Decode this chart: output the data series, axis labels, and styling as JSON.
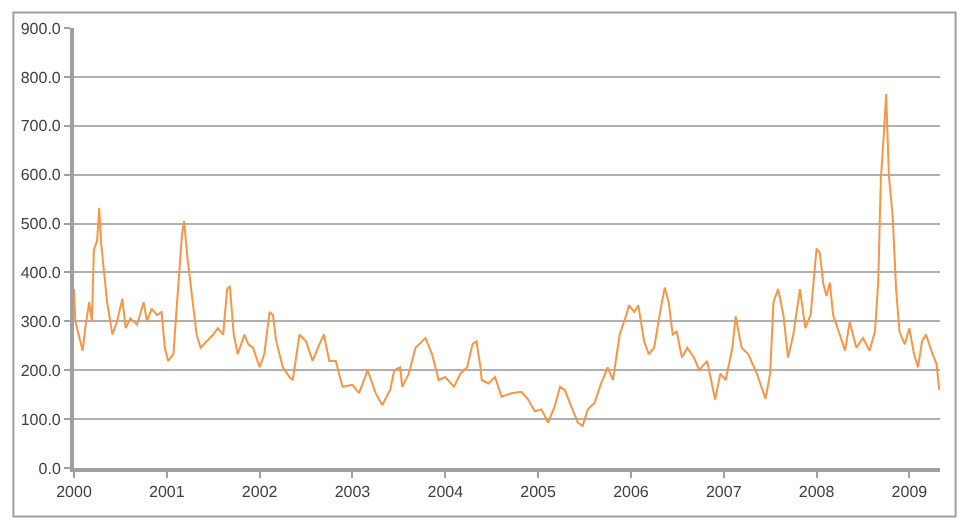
{
  "chart_data": {
    "type": "line",
    "x": [
      2000.0,
      2000.014,
      2000.05,
      2000.093,
      2000.121,
      2000.164,
      2000.193,
      2000.214,
      2000.25,
      2000.271,
      2000.293,
      2000.321,
      2000.357,
      2000.414,
      2000.464,
      2000.521,
      2000.557,
      2000.607,
      2000.679,
      2000.75,
      2000.786,
      2000.836,
      2000.893,
      2000.943,
      2000.979,
      2001.014,
      2001.071,
      2001.121,
      2001.164,
      2001.186,
      2001.221,
      2001.271,
      2001.321,
      2001.364,
      2001.429,
      2001.5,
      2001.55,
      2001.607,
      2001.65,
      2001.679,
      2001.721,
      2001.764,
      2001.836,
      2001.879,
      2001.929,
      2002.0,
      2002.05,
      2002.107,
      2002.143,
      2002.179,
      2002.25,
      2002.321,
      2002.357,
      2002.429,
      2002.5,
      2002.571,
      2002.643,
      2002.693,
      2002.75,
      2002.821,
      2002.893,
      2003.0,
      2003.071,
      2003.164,
      2003.25,
      2003.321,
      2003.407,
      2003.45,
      2003.514,
      2003.536,
      2003.607,
      2003.679,
      2003.75,
      2003.786,
      2003.857,
      2003.929,
      2004.0,
      2004.093,
      2004.164,
      2004.236,
      2004.293,
      2004.336,
      2004.379,
      2004.393,
      2004.464,
      2004.536,
      2004.607,
      2004.714,
      2004.821,
      2004.893,
      2004.964,
      2005.036,
      2005.107,
      2005.179,
      2005.236,
      2005.286,
      2005.357,
      2005.429,
      2005.479,
      2005.536,
      2005.607,
      2005.679,
      2005.75,
      2005.807,
      2005.879,
      2005.95,
      2005.979,
      2006.036,
      2006.079,
      2006.143,
      2006.193,
      2006.25,
      2006.321,
      2006.364,
      2006.407,
      2006.45,
      2006.493,
      2006.55,
      2006.607,
      2006.679,
      2006.736,
      2006.821,
      2006.907,
      2006.964,
      2007.021,
      2007.093,
      2007.129,
      2007.193,
      2007.264,
      2007.357,
      2007.45,
      2007.5,
      2007.536,
      2007.586,
      2007.643,
      2007.693,
      2007.75,
      2007.821,
      2007.879,
      2007.936,
      2008.0,
      2008.036,
      2008.071,
      2008.107,
      2008.143,
      2008.179,
      2008.25,
      2008.307,
      2008.357,
      2008.429,
      2008.5,
      2008.571,
      2008.629,
      2008.664,
      2008.693,
      2008.721,
      2008.75,
      2008.779,
      2008.821,
      2008.857,
      2008.893,
      2008.95,
      2009.0,
      2009.05,
      2009.093,
      2009.136,
      2009.179,
      2009.25,
      2009.293,
      2009.321
    ],
    "series": [
      {
        "color": "#f79646",
        "values": [
          366,
          300,
          273,
          240,
          286,
          339,
          300,
          446,
          466,
          532,
          459,
          406,
          339,
          273,
          300,
          346,
          286,
          306,
          293,
          339,
          300,
          326,
          313,
          319,
          246,
          219,
          233,
          366,
          479,
          505,
          432,
          352,
          273,
          246,
          259,
          273,
          286,
          273,
          366,
          372,
          273,
          233,
          273,
          253,
          246,
          206,
          233,
          319,
          313,
          259,
          206,
          186,
          180,
          273,
          259,
          219,
          253,
          273,
          219,
          219,
          166,
          170,
          153,
          200,
          153,
          129,
          160,
          200,
          206,
          166,
          193,
          246,
          259,
          266,
          233,
          180,
          186,
          166,
          193,
          206,
          253,
          259,
          206,
          180,
          173,
          186,
          146,
          153,
          156,
          140,
          116,
          120,
          93,
          126,
          166,
          160,
          126,
          93,
          86,
          120,
          133,
          173,
          206,
          180,
          273,
          313,
          333,
          319,
          333,
          259,
          233,
          246,
          326,
          369,
          339,
          273,
          279,
          226,
          246,
          226,
          200,
          219,
          140,
          193,
          180,
          246,
          310,
          246,
          233,
          193,
          142,
          193,
          339,
          366,
          313,
          226,
          273,
          366,
          286,
          313,
          449,
          439,
          379,
          352,
          379,
          313,
          273,
          240,
          299,
          246,
          266,
          240,
          279,
          379,
          592,
          672,
          765,
          599,
          512,
          366,
          279,
          253,
          286,
          233,
          206,
          259,
          273,
          233,
          213,
          160
        ]
      }
    ],
    "xlim": [
      2000,
      2009.33
    ],
    "xticks": [
      2000,
      2001,
      2002,
      2003,
      2004,
      2005,
      2006,
      2007,
      2008,
      2009
    ],
    "ylim": [
      0,
      900
    ],
    "yticks": [
      {
        "value": 0,
        "label": "0.0"
      },
      {
        "value": 100,
        "label": "100.0"
      },
      {
        "value": 200,
        "label": "200.0"
      },
      {
        "value": 300,
        "label": "300.0"
      },
      {
        "value": 400,
        "label": "400.0"
      },
      {
        "value": 500,
        "label": "500.0"
      },
      {
        "value": 600,
        "label": "600.0"
      },
      {
        "value": 700,
        "label": "700.0"
      },
      {
        "value": 800,
        "label": "800.0"
      },
      {
        "value": 900,
        "label": "900.0"
      }
    ],
    "grid": "y",
    "marker": "none",
    "line_style": "solid"
  }
}
